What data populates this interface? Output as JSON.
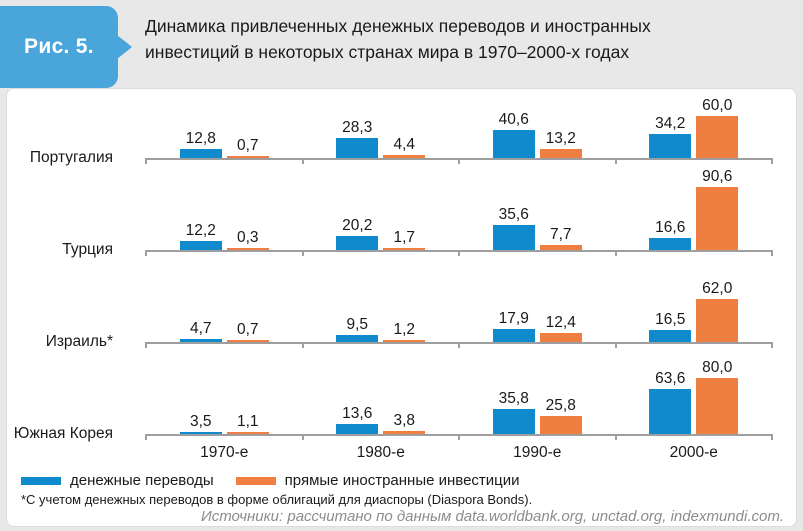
{
  "figure": {
    "badge_label": "Рис. 5."
  },
  "colors": {
    "badge": "#4aa5da",
    "background": "#e8e8e8",
    "panel": "#ffffff",
    "axis": "#9e9e9e"
  },
  "chart_data": {
    "type": "bar",
    "layout": "grouped horizontal small-multiples, one axis row per country, values labeled above bars",
    "title": "Динамика привлеченных денежных переводов и иностранных инвестиций в некоторых странах мира в 1970–2000-х годах",
    "categories": [
      "1970-е",
      "1980-е",
      "1990-е",
      "2000-е"
    ],
    "legend": [
      {
        "name": "денежные переводы",
        "color": "#0f8bcd"
      },
      {
        "name": "прямые иностранные инвестиции",
        "color": "#ee7f41"
      }
    ],
    "value_format": "one decimal, comma separator",
    "rows": [
      {
        "country": "Португалия",
        "money_transfers": [
          12.8,
          28.3,
          40.6,
          34.2
        ],
        "foreign_direct_investment": [
          0.7,
          4.4,
          13.2,
          60.0
        ]
      },
      {
        "country": "Турция",
        "money_transfers": [
          12.2,
          20.2,
          35.6,
          16.6
        ],
        "foreign_direct_investment": [
          0.3,
          1.7,
          7.7,
          90.6
        ]
      },
      {
        "country": "Израиль*",
        "money_transfers": [
          4.7,
          9.5,
          17.9,
          16.5
        ],
        "foreign_direct_investment": [
          0.7,
          1.2,
          12.4,
          62.0
        ]
      },
      {
        "country": "Южная Корея",
        "money_transfers": [
          3.5,
          13.6,
          35.8,
          63.6
        ],
        "foreign_direct_investment": [
          1.1,
          3.8,
          25.8,
          80.0
        ]
      }
    ],
    "footnote": "*С учетом денежных переводов в форме облигаций для диаспоры (Diaspora Bonds).",
    "source": "Источники: рассчитано по данным data.worldbank.org, unctad.org, indexmundi.com."
  }
}
